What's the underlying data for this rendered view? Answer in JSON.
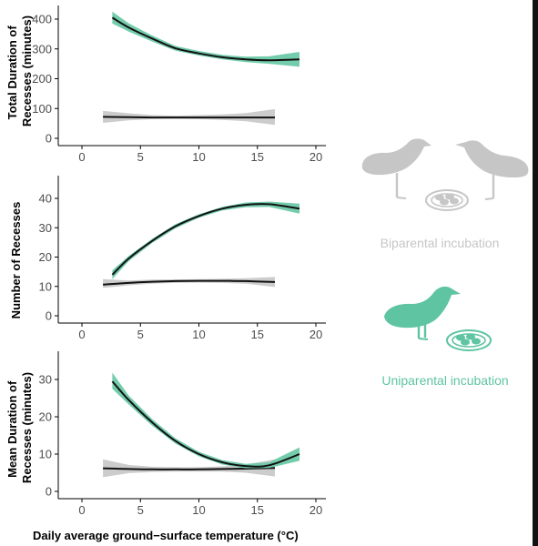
{
  "chart_data": [
    {
      "type": "line",
      "ylabel": [
        "Total Duration of",
        "Recesses (minutes)"
      ],
      "xlim": [
        0,
        20
      ],
      "ylim": [
        0,
        400
      ],
      "xticks": [
        5,
        10,
        15,
        20
      ],
      "yticks": [
        0,
        100,
        200,
        300,
        400
      ],
      "series": [
        {
          "legend_ref": 0,
          "x": [
            1.8,
            4,
            6,
            8,
            10,
            12,
            14,
            16.5
          ],
          "y": [
            72,
            71,
            70,
            70,
            70,
            70,
            70,
            70
          ],
          "band": [
            [
              1.8,
              52,
              92
            ],
            [
              4,
              60,
              84
            ],
            [
              6,
              64,
              78
            ],
            [
              8,
              65,
              76
            ],
            [
              10,
              64,
              78
            ],
            [
              12,
              62,
              80
            ],
            [
              14,
              57,
              85
            ],
            [
              16.5,
              45,
              98
            ]
          ]
        },
        {
          "legend_ref": 1,
          "x": [
            2.6,
            4,
            6,
            8,
            10,
            12,
            14,
            16,
            18.6
          ],
          "y": [
            405,
            372,
            335,
            302,
            285,
            272,
            265,
            262,
            265
          ],
          "band": [
            [
              2.6,
              385,
              425
            ],
            [
              4,
              358,
              386
            ],
            [
              6,
              325,
              345
            ],
            [
              8,
              294,
              310
            ],
            [
              10,
              278,
              293
            ],
            [
              12,
              265,
              280
            ],
            [
              14,
              256,
              274
            ],
            [
              16,
              250,
              275
            ],
            [
              18.6,
              240,
              290
            ]
          ]
        }
      ]
    },
    {
      "type": "line",
      "ylabel": [
        "Number of Recesses"
      ],
      "xlim": [
        0,
        20
      ],
      "ylim": [
        0,
        40
      ],
      "xticks": [
        5,
        10,
        15,
        20
      ],
      "yticks": [
        0,
        10,
        20,
        30,
        40
      ],
      "series": [
        {
          "legend_ref": 0,
          "x": [
            1.8,
            4,
            6,
            8,
            10,
            12,
            14,
            16.5
          ],
          "y": [
            10.6,
            11.2,
            11.6,
            11.8,
            11.9,
            11.9,
            11.8,
            11.5
          ],
          "band": [
            [
              1.8,
              9.5,
              12.5
            ],
            [
              4,
              10.4,
              12.0
            ],
            [
              6,
              10.9,
              12.3
            ],
            [
              8,
              11.2,
              12.4
            ],
            [
              10,
              11.3,
              12.5
            ],
            [
              12,
              11.2,
              12.6
            ],
            [
              14,
              10.9,
              12.8
            ],
            [
              16.5,
              9.8,
              13.2
            ]
          ]
        },
        {
          "legend_ref": 1,
          "x": [
            2.6,
            4,
            6,
            8,
            10,
            12,
            14,
            16,
            18.6
          ],
          "y": [
            14,
            19.5,
            25.5,
            30.5,
            34,
            36.5,
            37.8,
            38,
            36.5
          ],
          "band": [
            [
              2.6,
              12.5,
              15.5
            ],
            [
              4,
              18.6,
              20.4
            ],
            [
              6,
              24.8,
              26.2
            ],
            [
              8,
              29.8,
              31.2
            ],
            [
              10,
              33.4,
              34.6
            ],
            [
              12,
              35.9,
              37.1
            ],
            [
              14,
              37.0,
              38.6
            ],
            [
              16,
              37.1,
              38.9
            ],
            [
              18.6,
              34.8,
              38.2
            ]
          ]
        }
      ]
    },
    {
      "type": "line",
      "ylabel": [
        "Mean Duration of",
        "Recesses (minutes)"
      ],
      "xlim": [
        0,
        20
      ],
      "ylim": [
        0,
        30
      ],
      "xticks": [
        5,
        10,
        15,
        20
      ],
      "yticks": [
        0,
        10,
        20,
        30
      ],
      "xlabel": "Daily average ground−surface temperature (°C)",
      "series": [
        {
          "legend_ref": 0,
          "x": [
            1.8,
            4,
            6,
            8,
            10,
            12,
            14,
            16.5
          ],
          "y": [
            6.2,
            6.0,
            5.9,
            5.9,
            5.9,
            6.0,
            6.1,
            6.3
          ],
          "band": [
            [
              1.8,
              3.8,
              8.6
            ],
            [
              4,
              4.9,
              7.1
            ],
            [
              6,
              5.2,
              6.6
            ],
            [
              8,
              5.3,
              6.5
            ],
            [
              10,
              5.3,
              6.5
            ],
            [
              12,
              5.3,
              6.7
            ],
            [
              14,
              5.0,
              7.2
            ],
            [
              16.5,
              4.0,
              8.6
            ]
          ]
        },
        {
          "legend_ref": 1,
          "x": [
            2.6,
            4,
            6,
            8,
            10,
            12,
            14,
            16,
            18.6
          ],
          "y": [
            29.5,
            24.5,
            18.5,
            13.5,
            10,
            7.8,
            6.8,
            7.0,
            10
          ],
          "band": [
            [
              2.6,
              27.5,
              31.8
            ],
            [
              4,
              23.3,
              25.7
            ],
            [
              6,
              17.6,
              19.4
            ],
            [
              8,
              12.8,
              14.2
            ],
            [
              10,
              9.4,
              10.6
            ],
            [
              12,
              7.2,
              8.4
            ],
            [
              14,
              6.2,
              7.4
            ],
            [
              16,
              6.3,
              7.8
            ],
            [
              18.6,
              8.2,
              11.8
            ]
          ]
        }
      ]
    }
  ],
  "legend": [
    {
      "label": "Biparental incubation",
      "color": "#c6c6c6",
      "band_color": "#c9c9c9",
      "icon": "two-shorebirds-with-nest-icon"
    },
    {
      "label": "Uniparental incubation",
      "color": "#5ec4a1",
      "band_color": "#6cc9a8",
      "icon": "single-shorebird-with-nest-icon"
    }
  ]
}
